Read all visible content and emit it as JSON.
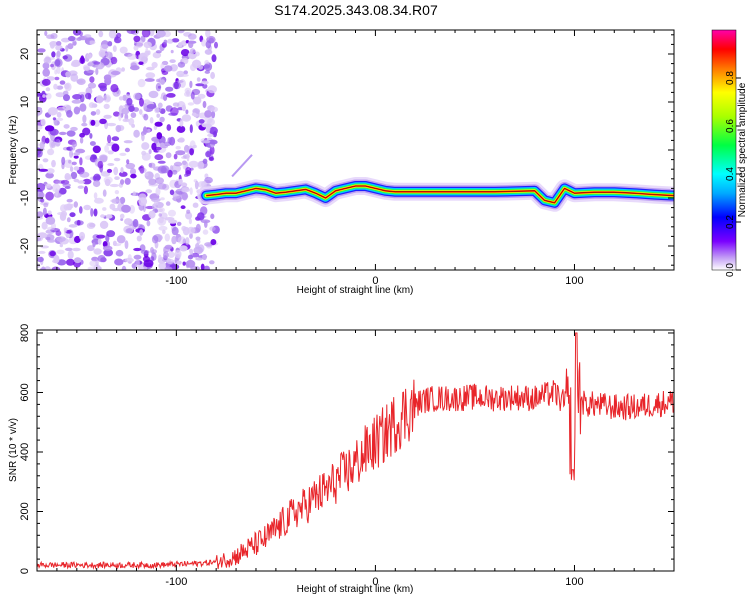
{
  "title": "S174.2025.343.08.34.R07",
  "chart_data": [
    {
      "type": "heatmap",
      "name": "spectrogram",
      "xlabel": "Height of straight line (km)",
      "ylabel": "Frequency (Hz)",
      "xlim": [
        -170,
        150
      ],
      "ylim": [
        -25,
        25
      ],
      "x_ticks": [
        -100,
        0,
        100
      ],
      "y_ticks": [
        -20,
        -10,
        0,
        10,
        20
      ],
      "colorbar": {
        "label": "Normalized spectral amplitude",
        "range": [
          0,
          1
        ],
        "ticks": [
          0.0,
          0.2,
          0.4,
          0.6,
          0.8
        ],
        "colors": [
          "#ffffff",
          "#7a00ff",
          "#0000ff",
          "#00ffff",
          "#00ff00",
          "#ffff00",
          "#ff0000",
          "#ff00aa"
        ]
      },
      "noise_region_x": [
        -170,
        -80
      ],
      "line_ridge": {
        "x": [
          -85,
          -80,
          -75,
          -70,
          -65,
          -60,
          -55,
          -50,
          -45,
          -40,
          -35,
          -30,
          -25,
          -20,
          -15,
          -10,
          -5,
          0,
          5,
          10,
          20,
          40,
          60,
          80,
          85,
          90,
          95,
          100,
          110,
          120,
          130,
          140,
          150
        ],
        "y": [
          -9.5,
          -9.3,
          -9.0,
          -9.0,
          -8.5,
          -8.0,
          -8.3,
          -9.0,
          -8.8,
          -8.5,
          -8.2,
          -9.0,
          -10.0,
          -8.5,
          -8.0,
          -7.5,
          -7.5,
          -8.0,
          -8.5,
          -8.7,
          -8.7,
          -8.7,
          -8.7,
          -8.5,
          -10.5,
          -11.0,
          -8.0,
          -9.0,
          -8.8,
          -8.8,
          -9.0,
          -9.3,
          -9.5
        ]
      }
    },
    {
      "type": "line",
      "name": "snr",
      "xlabel": "Height of straight line (km)",
      "ylabel": "SNR (10 * v/v)",
      "xlim": [
        -170,
        150
      ],
      "ylim": [
        0,
        810
      ],
      "x_ticks": [
        -100,
        0,
        100
      ],
      "y_ticks": [
        0,
        200,
        400,
        600,
        800
      ],
      "color": "#e8252a",
      "series": [
        {
          "x": [
            -170,
            -150,
            -130,
            -110,
            -90,
            -80,
            -75,
            -70,
            -65,
            -60,
            -55,
            -50,
            -45,
            -40,
            -35,
            -30,
            -25,
            -20,
            -15,
            -10,
            -5,
            0,
            5,
            10,
            15,
            20,
            25,
            30,
            40,
            50,
            60,
            70,
            80,
            85,
            90,
            95,
            98,
            100,
            102,
            105,
            110,
            120,
            130,
            140,
            150
          ],
          "y": [
            20,
            20,
            20,
            20,
            25,
            30,
            40,
            50,
            70,
            90,
            110,
            140,
            170,
            200,
            220,
            250,
            270,
            300,
            330,
            360,
            400,
            430,
            460,
            500,
            530,
            560,
            575,
            580,
            580,
            585,
            580,
            585,
            580,
            590,
            600,
            560,
            480,
            420,
            600,
            560,
            560,
            550,
            550,
            560,
            570
          ]
        }
      ]
    }
  ]
}
